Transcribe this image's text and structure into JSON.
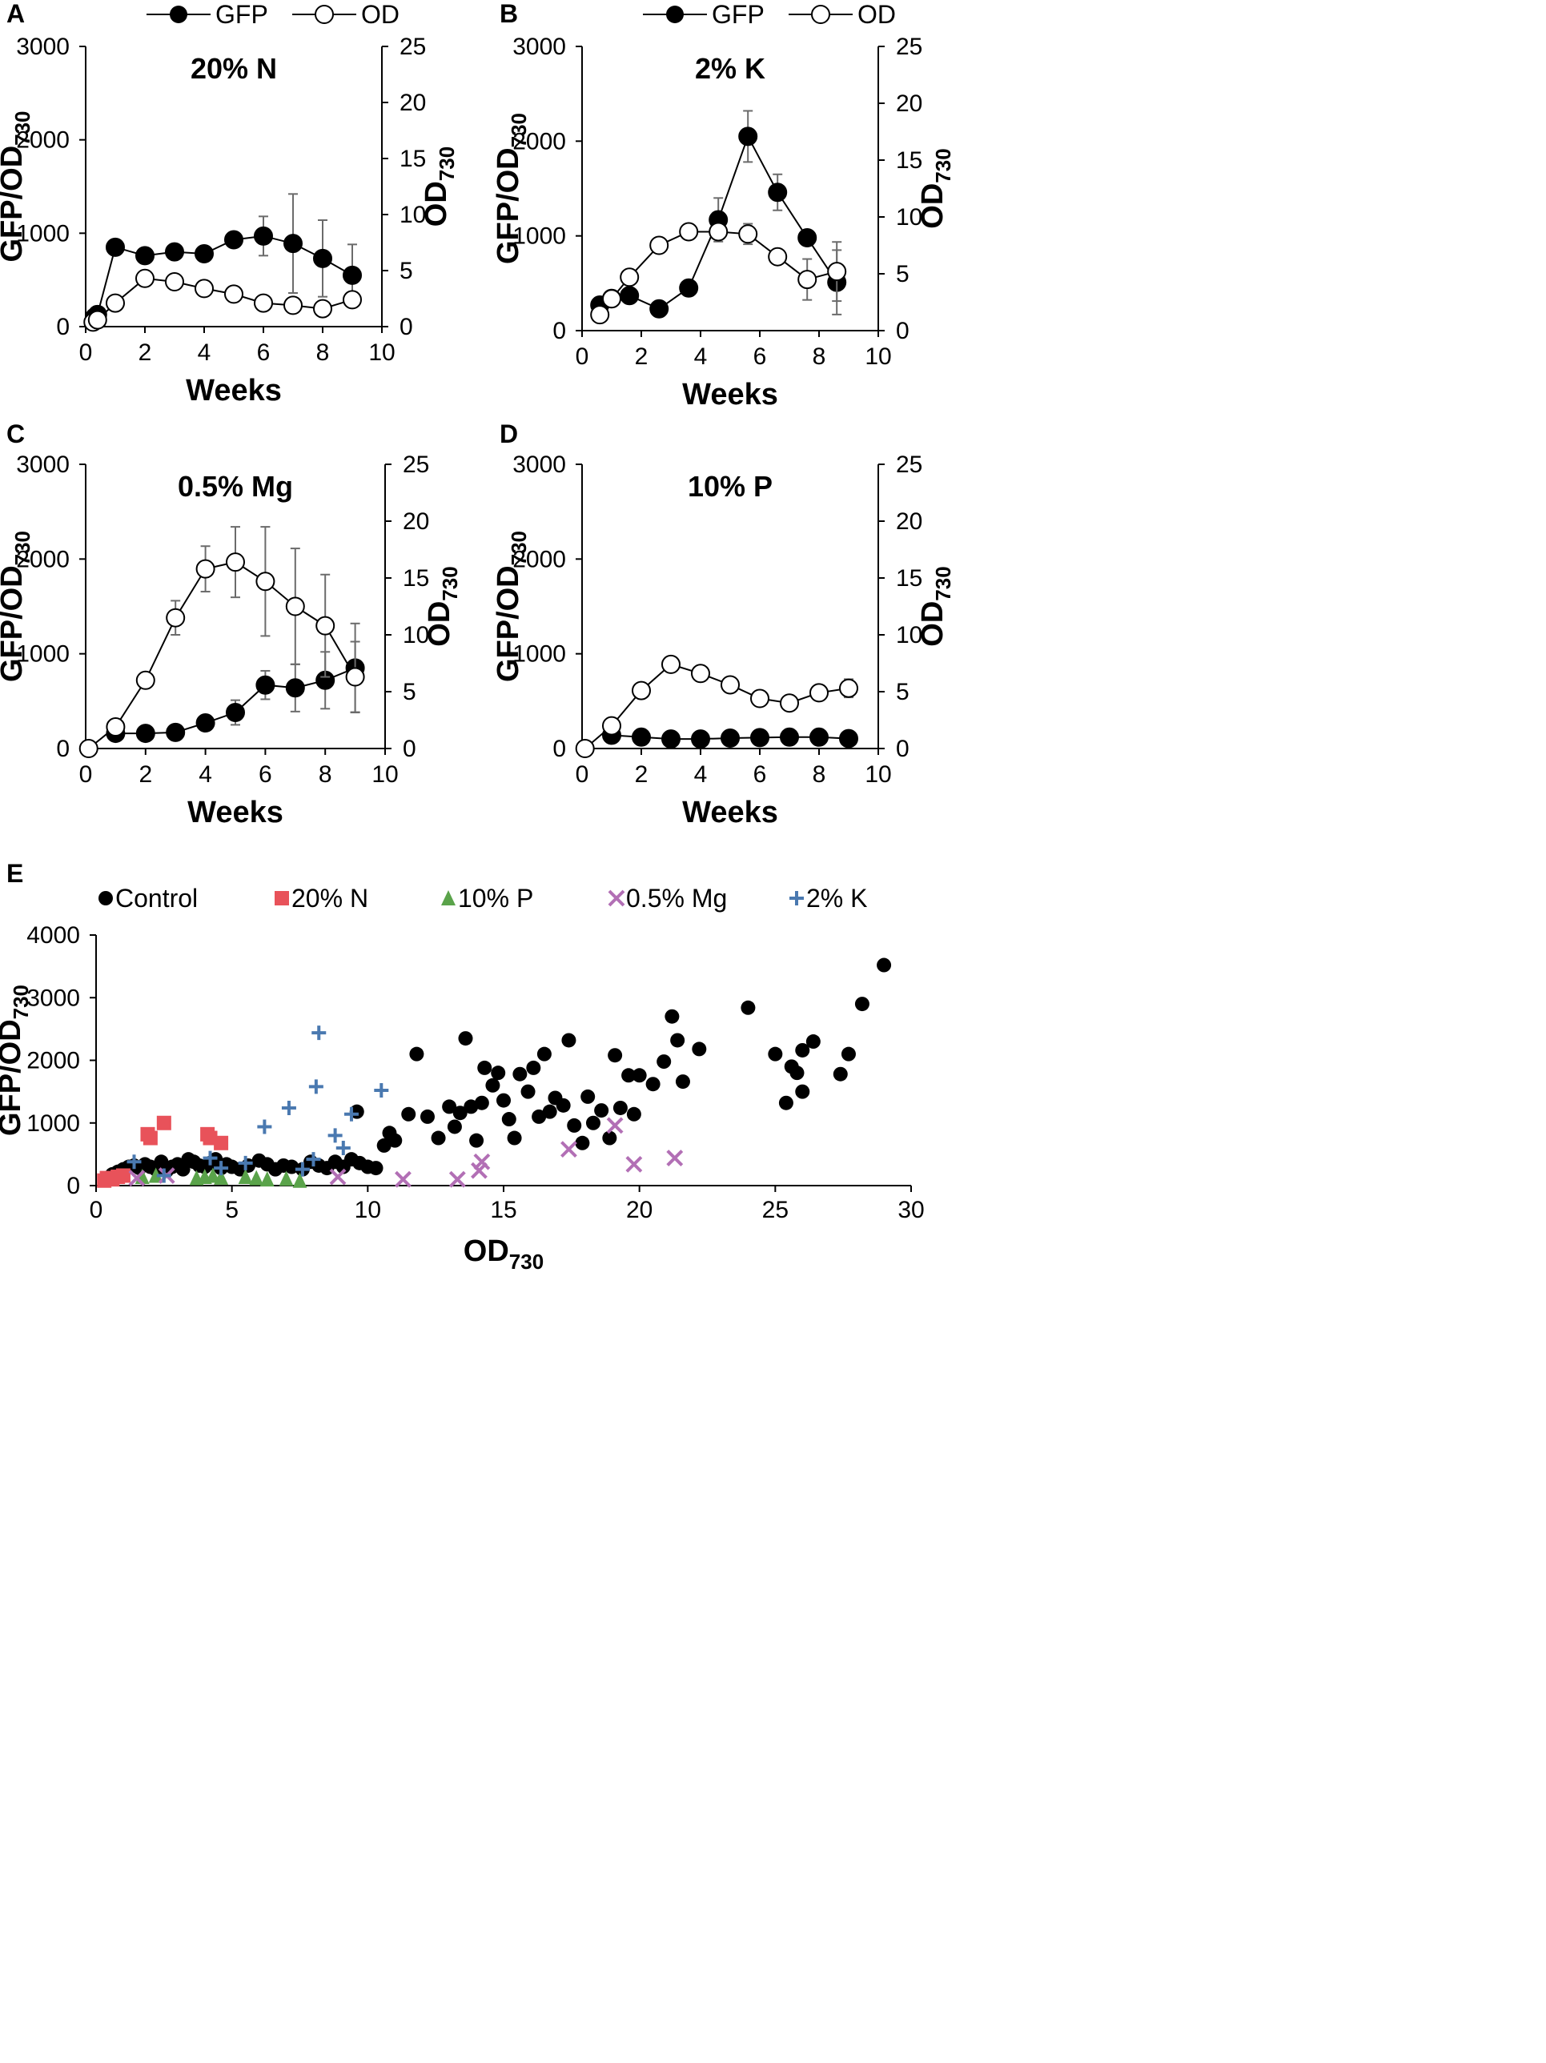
{
  "chart_data": [
    {
      "panel": "A",
      "type": "line",
      "title": "20% N",
      "xlabel": "Weeks",
      "ylabel": "GFP/OD",
      "ylabel_sub": "730",
      "y2label": "OD",
      "y2label_sub": "730",
      "xlim": [
        0,
        10
      ],
      "ylim": [
        0,
        3000
      ],
      "y2lim": [
        0,
        25
      ],
      "xticks": [
        "0",
        "2",
        "4",
        "6",
        "8",
        "10"
      ],
      "yticks": [
        "0",
        "1000",
        "2000",
        "3000"
      ],
      "y2ticks": [
        "0",
        "5",
        "10",
        "15",
        "20",
        "25"
      ],
      "legend": [
        "GFP",
        "OD"
      ],
      "series": [
        {
          "name": "GFP",
          "axis": "left",
          "marker": "filled",
          "x": [
            0.3,
            0.4,
            1,
            2,
            3,
            4,
            5,
            6,
            7,
            8,
            9
          ],
          "values": [
            100,
            130,
            850,
            760,
            800,
            780,
            930,
            970,
            890,
            730,
            550
          ],
          "err": [
            0,
            0,
            80,
            40,
            30,
            30,
            60,
            210,
            530,
            410,
            330
          ]
        },
        {
          "name": "OD",
          "axis": "right",
          "marker": "open",
          "x": [
            0.25,
            0.4,
            1,
            2,
            3,
            4,
            5,
            6,
            7,
            8,
            9
          ],
          "values": [
            0.4,
            0.6,
            2.1,
            4.3,
            4.0,
            3.4,
            2.9,
            2.1,
            1.9,
            1.6,
            2.4
          ],
          "err": [
            0,
            0,
            0,
            0,
            0,
            0,
            0,
            0.3,
            0.3,
            0.6,
            0.6
          ]
        }
      ]
    },
    {
      "panel": "B",
      "type": "line",
      "title": "2% K",
      "xlabel": "Weeks",
      "ylabel": "GFP/OD",
      "ylabel_sub": "730",
      "y2label": "OD",
      "y2label_sub": "730",
      "xlim": [
        0,
        10
      ],
      "ylim": [
        0,
        3000
      ],
      "y2lim": [
        0,
        25
      ],
      "xticks": [
        "0",
        "2",
        "4",
        "6",
        "8",
        "10"
      ],
      "yticks": [
        "0",
        "1000",
        "2000",
        "3000"
      ],
      "y2ticks": [
        "0",
        "5",
        "10",
        "15",
        "20",
        "25"
      ],
      "legend": [
        "GFP",
        "OD"
      ],
      "series": [
        {
          "name": "GFP",
          "axis": "left",
          "marker": "filled",
          "x": [
            0.6,
            1,
            1.6,
            2.6,
            3.6,
            4.6,
            5.6,
            6.6,
            7.6,
            8.6
          ],
          "values": [
            270,
            340,
            370,
            230,
            450,
            1170,
            2050,
            1460,
            980,
            510
          ],
          "err": [
            0,
            0,
            0,
            0,
            80,
            230,
            270,
            190,
            0,
            340
          ]
        },
        {
          "name": "OD",
          "axis": "right",
          "marker": "open",
          "x": [
            0.6,
            1,
            1.6,
            2.6,
            3.6,
            4.6,
            5.6,
            6.6,
            7.6,
            8.6
          ],
          "values": [
            1.4,
            2.8,
            4.7,
            7.5,
            8.7,
            8.7,
            8.5,
            6.5,
            4.5,
            5.2
          ],
          "err": [
            0,
            0,
            0,
            0,
            0,
            0.4,
            0.9,
            0,
            1.8,
            2.6
          ]
        }
      ]
    },
    {
      "panel": "C",
      "type": "line",
      "title": "0.5% Mg",
      "xlabel": "Weeks",
      "ylabel": "GFP/OD",
      "ylabel_sub": "730",
      "y2label": "OD",
      "y2label_sub": "730",
      "xlim": [
        0,
        10
      ],
      "ylim": [
        0,
        3000
      ],
      "y2lim": [
        0,
        25
      ],
      "xticks": [
        "0",
        "2",
        "4",
        "6",
        "8",
        "10"
      ],
      "yticks": [
        "0",
        "1000",
        "2000",
        "3000"
      ],
      "y2ticks": [
        "0",
        "5",
        "10",
        "15",
        "20",
        "25"
      ],
      "series": [
        {
          "name": "GFP",
          "axis": "left",
          "marker": "filled",
          "x": [
            1,
            2,
            3,
            4,
            5,
            6,
            7,
            8,
            9
          ],
          "values": [
            160,
            160,
            170,
            270,
            380,
            670,
            640,
            720,
            850
          ],
          "err": [
            0,
            0,
            0,
            80,
            130,
            150,
            250,
            300,
            470
          ]
        },
        {
          "name": "OD",
          "axis": "right",
          "marker": "open",
          "x": [
            0.1,
            1,
            2,
            3,
            4,
            5,
            6,
            7,
            8,
            9
          ],
          "values": [
            0,
            1.9,
            6.0,
            11.5,
            15.8,
            16.4,
            14.7,
            12.5,
            10.8,
            6.3
          ],
          "err": [
            0,
            0,
            0.6,
            1.5,
            2.0,
            3.1,
            4.8,
            5.1,
            4.5,
            3.1
          ]
        }
      ]
    },
    {
      "panel": "D",
      "type": "line",
      "title": "10% P",
      "xlabel": "Weeks",
      "ylabel": "GFP/OD",
      "ylabel_sub": "730",
      "y2label": "OD",
      "y2label_sub": "730",
      "xlim": [
        0,
        10
      ],
      "ylim": [
        0,
        3000
      ],
      "y2lim": [
        0,
        25
      ],
      "xticks": [
        "0",
        "2",
        "4",
        "6",
        "8",
        "10"
      ],
      "yticks": [
        "0",
        "1000",
        "2000",
        "3000"
      ],
      "y2ticks": [
        "0",
        "5",
        "10",
        "15",
        "20",
        "25"
      ],
      "series": [
        {
          "name": "GFP",
          "axis": "left",
          "marker": "filled",
          "x": [
            1,
            2,
            3,
            4,
            5,
            6,
            7,
            8,
            9
          ],
          "values": [
            140,
            120,
            100,
            100,
            110,
            115,
            120,
            120,
            105
          ],
          "err": [
            0,
            0,
            0,
            0,
            0,
            0,
            0,
            0,
            0
          ]
        },
        {
          "name": "OD",
          "axis": "right",
          "marker": "open",
          "x": [
            0.1,
            1,
            2,
            3,
            4,
            5,
            6,
            7,
            8,
            9
          ],
          "values": [
            0,
            2.0,
            5.1,
            7.4,
            6.6,
            5.6,
            4.4,
            4.0,
            4.9,
            5.3
          ],
          "err": [
            0,
            0,
            0,
            0,
            0,
            0,
            0,
            0,
            0.5,
            0.8
          ]
        }
      ]
    },
    {
      "panel": "E",
      "type": "scatter",
      "title": "",
      "xlabel": "OD",
      "xlabel_sub": "730",
      "ylabel": "GFP/OD",
      "ylabel_sub": "730",
      "xlim": [
        0,
        30
      ],
      "ylim": [
        0,
        4000
      ],
      "xticks": [
        "0",
        "5",
        "10",
        "15",
        "20",
        "25",
        "30"
      ],
      "yticks": [
        "0",
        "1000",
        "2000",
        "3000",
        "4000"
      ],
      "legend": [
        "Control",
        "20% N",
        "10% P",
        "0.5% Mg",
        "2% K"
      ],
      "series": [
        {
          "name": "Control",
          "marker": "circle",
          "color": "#000000",
          "points": [
            [
              0.4,
              120
            ],
            [
              0.6,
              180
            ],
            [
              0.8,
              220
            ],
            [
              1.0,
              260
            ],
            [
              1.2,
              300
            ],
            [
              1.4,
              320
            ],
            [
              1.6,
              280
            ],
            [
              1.8,
              340
            ],
            [
              2.0,
              300
            ],
            [
              2.2,
              260
            ],
            [
              2.4,
              380
            ],
            [
              2.6,
              240
            ],
            [
              2.8,
              300
            ],
            [
              3.0,
              340
            ],
            [
              3.2,
              260
            ],
            [
              3.4,
              420
            ],
            [
              3.6,
              380
            ],
            [
              3.8,
              320
            ],
            [
              4.0,
              300
            ],
            [
              4.2,
              360
            ],
            [
              4.4,
              420
            ],
            [
              4.6,
              280
            ],
            [
              4.8,
              340
            ],
            [
              5.0,
              300
            ],
            [
              5.3,
              260
            ],
            [
              5.6,
              320
            ],
            [
              6.0,
              400
            ],
            [
              6.3,
              340
            ],
            [
              6.6,
              260
            ],
            [
              6.9,
              320
            ],
            [
              7.2,
              300
            ],
            [
              7.6,
              260
            ],
            [
              7.9,
              380
            ],
            [
              8.2,
              320
            ],
            [
              8.5,
              280
            ],
            [
              8.8,
              380
            ],
            [
              9.1,
              300
            ],
            [
              9.4,
              420
            ],
            [
              9.7,
              360
            ],
            [
              10.0,
              300
            ],
            [
              10.3,
              280
            ],
            [
              10.6,
              640
            ],
            [
              10.8,
              840
            ],
            [
              11.0,
              720
            ],
            [
              9.6,
              1180
            ],
            [
              11.5,
              1140
            ],
            [
              11.8,
              2100
            ],
            [
              12.2,
              1100
            ],
            [
              12.6,
              760
            ],
            [
              13.0,
              1260
            ],
            [
              13.2,
              940
            ],
            [
              13.4,
              1160
            ],
            [
              13.6,
              2350
            ],
            [
              13.8,
              1260
            ],
            [
              14.0,
              720
            ],
            [
              14.2,
              1320
            ],
            [
              14.3,
              1880
            ],
            [
              14.6,
              1600
            ],
            [
              14.8,
              1800
            ],
            [
              15.0,
              1360
            ],
            [
              15.2,
              1060
            ],
            [
              15.4,
              760
            ],
            [
              15.6,
              1780
            ],
            [
              15.9,
              1500
            ],
            [
              16.1,
              1880
            ],
            [
              16.3,
              1100
            ],
            [
              16.5,
              2100
            ],
            [
              16.7,
              1180
            ],
            [
              16.9,
              1400
            ],
            [
              17.2,
              1280
            ],
            [
              17.4,
              2320
            ],
            [
              17.6,
              960
            ],
            [
              17.9,
              680
            ],
            [
              18.1,
              1420
            ],
            [
              18.3,
              1000
            ],
            [
              18.6,
              1200
            ],
            [
              18.9,
              760
            ],
            [
              19.1,
              2080
            ],
            [
              19.3,
              1240
            ],
            [
              19.6,
              1760
            ],
            [
              19.8,
              1140
            ],
            [
              20.0,
              1760
            ],
            [
              20.5,
              1620
            ],
            [
              20.9,
              1980
            ],
            [
              21.2,
              2700
            ],
            [
              21.4,
              2320
            ],
            [
              21.6,
              1660
            ],
            [
              22.2,
              2180
            ],
            [
              24.0,
              2840
            ],
            [
              25.0,
              2100
            ],
            [
              25.4,
              1320
            ],
            [
              25.6,
              1900
            ],
            [
              25.8,
              1800
            ],
            [
              26.0,
              2160
            ],
            [
              26.0,
              1500
            ],
            [
              26.4,
              2300
            ],
            [
              27.4,
              1780
            ],
            [
              27.7,
              2100
            ],
            [
              28.2,
              2900
            ],
            [
              29.0,
              3520
            ]
          ]
        },
        {
          "name": "20% N",
          "marker": "square",
          "color": "#e8525a",
          "points": [
            [
              0.3,
              80
            ],
            [
              0.4,
              120
            ],
            [
              0.6,
              100
            ],
            [
              0.8,
              140
            ],
            [
              1.0,
              160
            ],
            [
              1.9,
              820
            ],
            [
              2.0,
              760
            ],
            [
              2.5,
              1000
            ],
            [
              4.1,
              820
            ],
            [
              4.2,
              760
            ],
            [
              4.6,
              680
            ]
          ]
        },
        {
          "name": "10% P",
          "marker": "triangle",
          "color": "#5aa34a",
          "points": [
            [
              1.7,
              140
            ],
            [
              2.2,
              160
            ],
            [
              3.7,
              120
            ],
            [
              4.0,
              140
            ],
            [
              4.3,
              160
            ],
            [
              4.6,
              130
            ],
            [
              5.5,
              140
            ],
            [
              5.9,
              120
            ],
            [
              6.3,
              100
            ],
            [
              7.0,
              110
            ],
            [
              7.5,
              80
            ]
          ]
        },
        {
          "name": "0.5% Mg",
          "marker": "x",
          "color": "#b26fb5",
          "points": [
            [
              1.5,
              120
            ],
            [
              2.6,
              160
            ],
            [
              8.9,
              140
            ],
            [
              11.3,
              100
            ],
            [
              13.3,
              100
            ],
            [
              14.1,
              240
            ],
            [
              14.2,
              380
            ],
            [
              17.4,
              580
            ],
            [
              19.1,
              960
            ],
            [
              19.8,
              340
            ],
            [
              21.3,
              440
            ]
          ]
        },
        {
          "name": "2% K",
          "marker": "plus",
          "color": "#4a79b0",
          "points": [
            [
              1.4,
              380
            ],
            [
              2.5,
              160
            ],
            [
              4.2,
              440
            ],
            [
              4.6,
              280
            ],
            [
              5.5,
              360
            ],
            [
              6.2,
              940
            ],
            [
              7.1,
              1240
            ],
            [
              7.6,
              260
            ],
            [
              8.0,
              420
            ],
            [
              8.1,
              1580
            ],
            [
              8.2,
              2440
            ],
            [
              8.8,
              800
            ],
            [
              9.1,
              600
            ],
            [
              9.4,
              1140
            ],
            [
              10.5,
              1520
            ]
          ]
        }
      ]
    }
  ]
}
